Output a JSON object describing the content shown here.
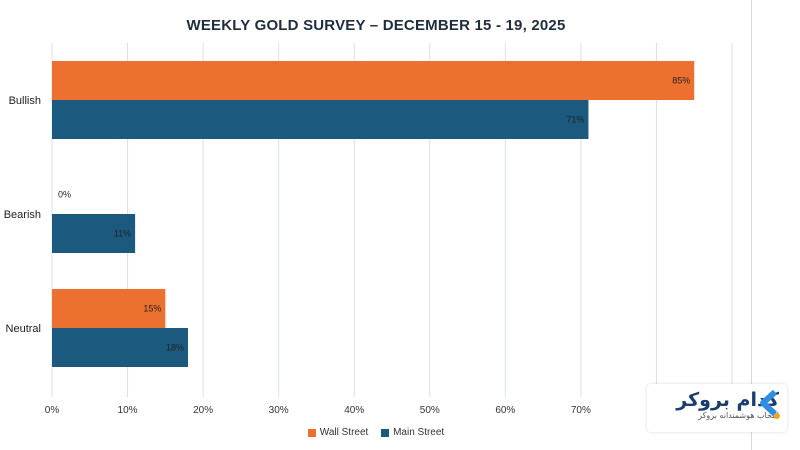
{
  "colors": {
    "wall_street": "#ed7031",
    "main_street": "#1b5a7e",
    "grid": "#d9e1ea",
    "logo": "#2f8de4",
    "logo_dot": "#f2a516"
  },
  "legend": {
    "wall_street": "Wall Street",
    "main_street": "Main Street"
  },
  "watermark": {
    "brand": "کدام بروکر",
    "tagline": "انتخاب هوشمندانه بروکر"
  },
  "chart_data": {
    "type": "bar",
    "orientation": "horizontal",
    "title": "WEEKLY GOLD SURVEY – DECEMBER 15 - 19, 2025",
    "categories": [
      "Bullish",
      "Bearish",
      "Neutral"
    ],
    "series": [
      {
        "name": "Wall Street",
        "values": [
          85,
          0,
          15
        ],
        "labels": [
          "85%",
          "0%",
          "15%"
        ]
      },
      {
        "name": "Main Street",
        "values": [
          71,
          11,
          18
        ],
        "labels": [
          "71%",
          "11%",
          "18%"
        ]
      }
    ],
    "xlim": [
      0,
      90
    ],
    "xticks": [
      0,
      10,
      20,
      30,
      40,
      50,
      60,
      70
    ],
    "xtick_labels": [
      "0%",
      "10%",
      "20%",
      "30%",
      "40%",
      "50%",
      "60%",
      "70%"
    ],
    "grid": true,
    "legend_position": "bottom"
  }
}
